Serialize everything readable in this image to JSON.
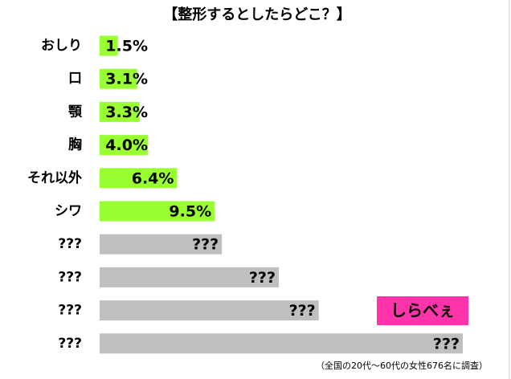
{
  "chart_data": {
    "type": "hbar",
    "title": "【整形するとしたらどこ？】",
    "categories": [
      "おしり",
      "口",
      "顎",
      "胸",
      "それ以外",
      "シワ",
      "???",
      "???",
      "???",
      "???"
    ],
    "values": [
      1.5,
      3.1,
      3.3,
      4.0,
      6.4,
      9.5,
      10.1,
      14.8,
      18.1,
      30.0
    ],
    "value_labels": [
      "1.5%",
      "3.1%",
      "3.3%",
      "4.0%",
      "6.4%",
      "9.5%",
      "???",
      "???",
      "???",
      "???"
    ],
    "colors": [
      "#99ff33",
      "#99ff33",
      "#99ff33",
      "#99ff33",
      "#99ff33",
      "#99ff33",
      "#bfbfbf",
      "#bfbfbf",
      "#bfbfbf",
      "#bfbfbf"
    ],
    "note": "（全国の20代～60代の女性676名に調査）",
    "logo": "しらべぇ"
  }
}
